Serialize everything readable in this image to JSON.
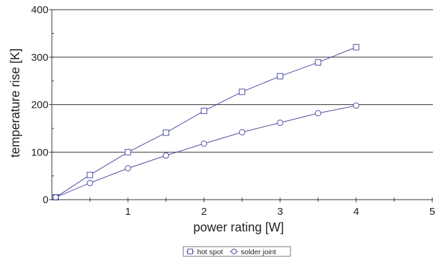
{
  "chart_data": {
    "type": "line",
    "xlabel": "power rating [W]",
    "ylabel": "temperature rise [K]",
    "xlim": [
      0,
      5
    ],
    "ylim": [
      0,
      400
    ],
    "x_ticks": [
      1,
      2,
      3,
      4,
      5
    ],
    "x_tick_labels": [
      "1",
      "2",
      "3",
      "4",
      "5"
    ],
    "y_ticks": [
      0,
      100,
      200,
      300,
      400
    ],
    "y_tick_labels": [
      "0",
      "100",
      "200",
      "300",
      "400"
    ],
    "grid": "horizontal",
    "legend_position": "bottom-center",
    "series": [
      {
        "name": "hot spot",
        "marker": "square",
        "color": "#4a4aa0",
        "x": [
          0.05,
          0.5,
          1.0,
          1.5,
          2.0,
          2.5,
          3.0,
          3.5,
          4.0
        ],
        "y": [
          5,
          52,
          100,
          141,
          187,
          227,
          260,
          289,
          321
        ]
      },
      {
        "name": "solder joint",
        "marker": "circle",
        "color": "#4a4aa0",
        "x": [
          0.05,
          0.5,
          1.0,
          1.5,
          2.0,
          2.5,
          3.0,
          3.5,
          4.0
        ],
        "y": [
          5,
          35,
          66,
          93,
          118,
          142,
          162,
          182,
          198
        ]
      }
    ]
  }
}
